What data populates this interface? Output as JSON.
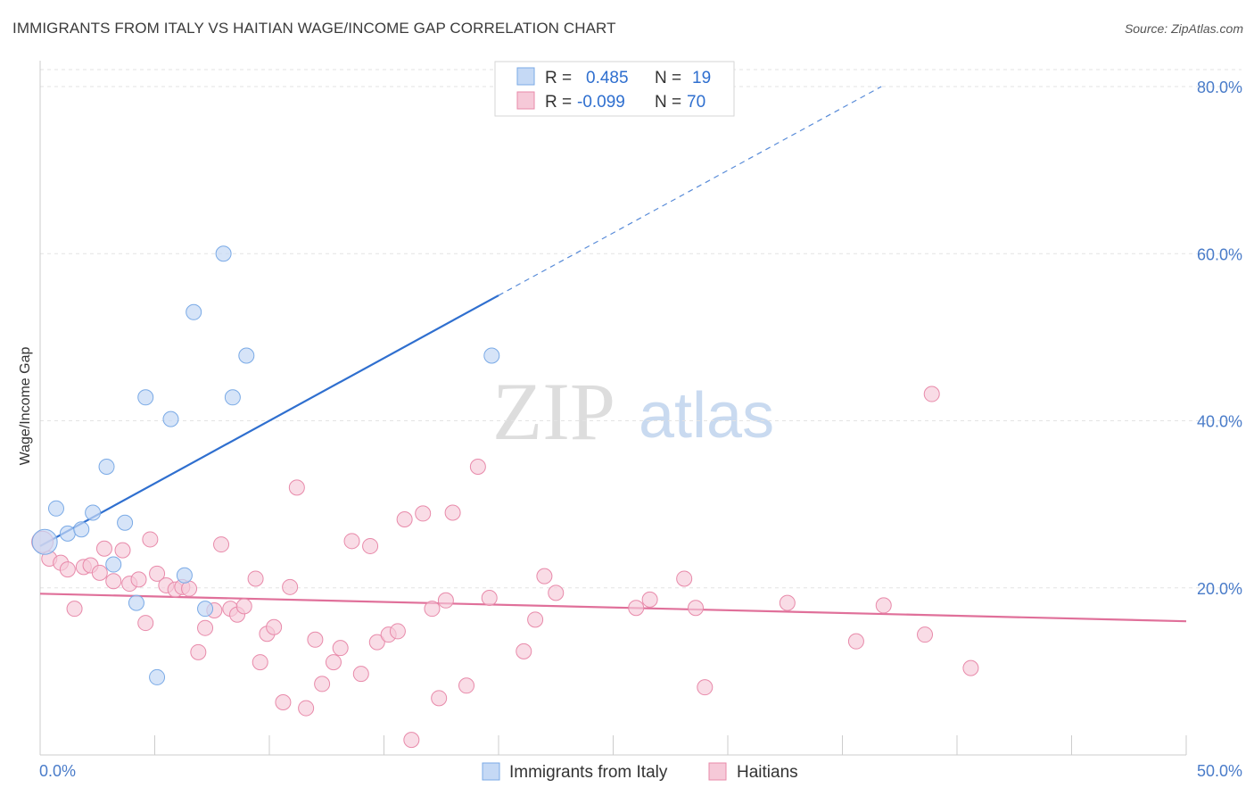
{
  "title": "IMMIGRANTS FROM ITALY VS HAITIAN WAGE/INCOME GAP CORRELATION CHART",
  "source": "Source: ZipAtlas.com",
  "watermark": {
    "part1": "ZIP",
    "part2": "atlas"
  },
  "colors": {
    "italy": "#7aaae6",
    "italy_fill": "#c5d9f5",
    "haitians": "#e88aaa",
    "haitians_fill": "#f6c9d8",
    "italy_line": "#2f6fcf",
    "haitians_line": "#e0709a",
    "tick_text": "#4a7cc9"
  },
  "legend": {
    "rows": [
      {
        "r_label": "R =",
        "r_value": "0.485",
        "n_label": "N =",
        "n_value": "19"
      },
      {
        "r_label": "R =",
        "r_value": "-0.099",
        "n_label": "N =",
        "n_value": "70"
      }
    ]
  },
  "chart_data": {
    "type": "scatter",
    "ylabel": "Wage/Income Gap",
    "xlim": [
      0,
      50
    ],
    "ylim": [
      0,
      82
    ],
    "x_tick_labels": [
      {
        "value": 0,
        "label": "0.0%"
      },
      {
        "value": 50,
        "label": "50.0%"
      }
    ],
    "y_tick_labels": [
      {
        "value": 20,
        "label": "20.0%"
      },
      {
        "value": 40,
        "label": "40.0%"
      },
      {
        "value": 60,
        "label": "60.0%"
      },
      {
        "value": 80,
        "label": "80.0%"
      }
    ],
    "series": [
      {
        "name": "Immigrants from Italy",
        "points": [
          [
            0.2,
            25.5
          ],
          [
            0.7,
            29.5
          ],
          [
            1.2,
            26.5
          ],
          [
            1.8,
            27
          ],
          [
            2.3,
            29
          ],
          [
            2.9,
            34.5
          ],
          [
            3.2,
            22.8
          ],
          [
            3.7,
            27.8
          ],
          [
            4.2,
            18.2
          ],
          [
            4.6,
            42.8
          ],
          [
            5.1,
            9.3
          ],
          [
            5.7,
            40.2
          ],
          [
            6.3,
            21.5
          ],
          [
            6.7,
            53
          ],
          [
            7.2,
            17.5
          ],
          [
            8.0,
            60
          ],
          [
            8.4,
            42.8
          ],
          [
            9.0,
            47.8
          ],
          [
            19.7,
            47.8
          ]
        ],
        "trend": {
          "x0": 0,
          "y0": 25,
          "x1": 20,
          "y1": 55,
          "dash_to_x": 36.7,
          "dash_to_y": 80
        }
      },
      {
        "name": "Haitians",
        "points": [
          [
            0.1,
            25.5
          ],
          [
            0.4,
            23.5
          ],
          [
            0.9,
            23
          ],
          [
            1.2,
            22.2
          ],
          [
            1.5,
            17.5
          ],
          [
            1.9,
            22.5
          ],
          [
            2.2,
            22.7
          ],
          [
            2.6,
            21.8
          ],
          [
            2.8,
            24.7
          ],
          [
            3.2,
            20.8
          ],
          [
            3.6,
            24.5
          ],
          [
            3.9,
            20.5
          ],
          [
            4.3,
            21
          ],
          [
            4.6,
            15.8
          ],
          [
            4.8,
            25.8
          ],
          [
            5.1,
            21.7
          ],
          [
            5.5,
            20.3
          ],
          [
            5.9,
            19.8
          ],
          [
            6.2,
            20.1
          ],
          [
            6.5,
            19.9
          ],
          [
            6.9,
            12.3
          ],
          [
            7.2,
            15.2
          ],
          [
            7.6,
            17.3
          ],
          [
            7.9,
            25.2
          ],
          [
            8.3,
            17.5
          ],
          [
            8.6,
            16.8
          ],
          [
            8.9,
            17.8
          ],
          [
            9.4,
            21.1
          ],
          [
            9.6,
            11.1
          ],
          [
            9.9,
            14.5
          ],
          [
            10.2,
            15.3
          ],
          [
            10.6,
            6.3
          ],
          [
            10.9,
            20.1
          ],
          [
            11.2,
            32
          ],
          [
            11.6,
            5.6
          ],
          [
            12.0,
            13.8
          ],
          [
            12.3,
            8.5
          ],
          [
            12.8,
            11.1
          ],
          [
            13.1,
            12.8
          ],
          [
            13.6,
            25.6
          ],
          [
            14.0,
            9.7
          ],
          [
            14.4,
            25
          ],
          [
            14.7,
            13.5
          ],
          [
            15.2,
            14.4
          ],
          [
            15.6,
            14.8
          ],
          [
            15.9,
            28.2
          ],
          [
            16.2,
            1.8
          ],
          [
            16.7,
            28.9
          ],
          [
            17.1,
            17.5
          ],
          [
            17.4,
            6.8
          ],
          [
            17.7,
            18.5
          ],
          [
            18.0,
            29
          ],
          [
            18.6,
            8.3
          ],
          [
            19.1,
            34.5
          ],
          [
            19.6,
            18.8
          ],
          [
            21.1,
            12.4
          ],
          [
            21.6,
            16.2
          ],
          [
            22.0,
            21.4
          ],
          [
            22.5,
            19.4
          ],
          [
            26.0,
            17.6
          ],
          [
            26.6,
            18.6
          ],
          [
            28.1,
            21.1
          ],
          [
            28.6,
            17.6
          ],
          [
            29.0,
            8.1
          ],
          [
            32.6,
            18.2
          ],
          [
            35.6,
            13.6
          ],
          [
            36.8,
            17.9
          ],
          [
            38.6,
            14.4
          ],
          [
            38.9,
            43.2
          ],
          [
            40.6,
            10.4
          ]
        ],
        "trend": {
          "x0": 0,
          "y0": 19.3,
          "x1": 50,
          "y1": 16.0
        }
      }
    ],
    "grid": true,
    "legend_position": "top-center"
  }
}
